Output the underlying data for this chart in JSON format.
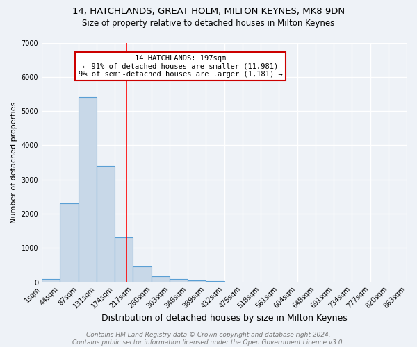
{
  "title": "14, HATCHLANDS, GREAT HOLM, MILTON KEYNES, MK8 9DN",
  "subtitle": "Size of property relative to detached houses in Milton Keynes",
  "xlabel": "Distribution of detached houses by size in Milton Keynes",
  "ylabel": "Number of detached properties",
  "bin_labels": [
    "1sqm",
    "44sqm",
    "87sqm",
    "131sqm",
    "174sqm",
    "217sqm",
    "260sqm",
    "303sqm",
    "346sqm",
    "389sqm",
    "432sqm",
    "475sqm",
    "518sqm",
    "561sqm",
    "604sqm",
    "648sqm",
    "691sqm",
    "734sqm",
    "777sqm",
    "820sqm",
    "863sqm"
  ],
  "bar_values": [
    100,
    2300,
    5400,
    3400,
    1300,
    450,
    180,
    90,
    50,
    30,
    0,
    0,
    0,
    0,
    0,
    0,
    0,
    0,
    0,
    0
  ],
  "bar_color": "#c8d8e8",
  "bar_edge_color": "#5a9fd4",
  "red_line_x": 4.65,
  "annotation_text": "14 HATCHLANDS: 197sqm\n← 91% of detached houses are smaller (11,981)\n9% of semi-detached houses are larger (1,181) →",
  "annotation_box_color": "#ffffff",
  "annotation_box_edge_color": "#cc0000",
  "ylim": [
    0,
    7000
  ],
  "yticks": [
    0,
    1000,
    2000,
    3000,
    4000,
    5000,
    6000,
    7000
  ],
  "footer": "Contains HM Land Registry data © Crown copyright and database right 2024.\nContains public sector information licensed under the Open Government Licence v3.0.",
  "bg_color": "#eef2f7",
  "grid_color": "#ffffff",
  "title_fontsize": 9.5,
  "subtitle_fontsize": 8.5,
  "xlabel_fontsize": 9,
  "ylabel_fontsize": 8,
  "footer_fontsize": 6.5,
  "annotation_fontsize": 7.5,
  "tick_fontsize": 7
}
